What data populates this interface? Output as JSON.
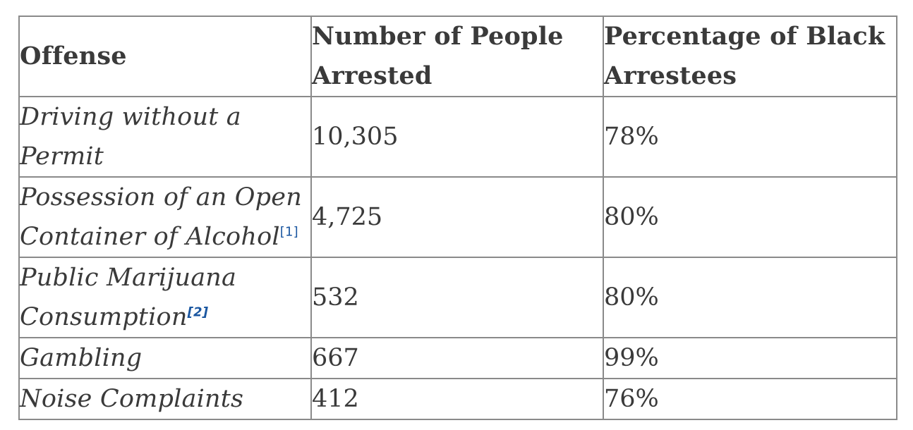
{
  "table": {
    "headers": [
      "Offense",
      "Number of People Arrested",
      "Percentage of Black Arrestees"
    ],
    "rows": [
      {
        "offense": "Driving without a Permit",
        "ref": "",
        "arrested": "10,305",
        "percent": "78%"
      },
      {
        "offense": "Possession of an Open Container of Alcohol",
        "ref": "[1]",
        "arrested": "4,725",
        "percent": "80%"
      },
      {
        "offense": "Public Marijuana Consumption",
        "ref": "[2]",
        "arrested": "532",
        "percent": "80%"
      },
      {
        "offense": "Gambling",
        "ref": "",
        "arrested": "667",
        "percent": "99%"
      },
      {
        "offense": "Noise Complaints",
        "ref": "",
        "arrested": "412",
        "percent": "76%"
      }
    ]
  },
  "colors": {
    "text": "#3a3a3a",
    "link": "#1a56a0",
    "border": "#8a8a8a"
  }
}
